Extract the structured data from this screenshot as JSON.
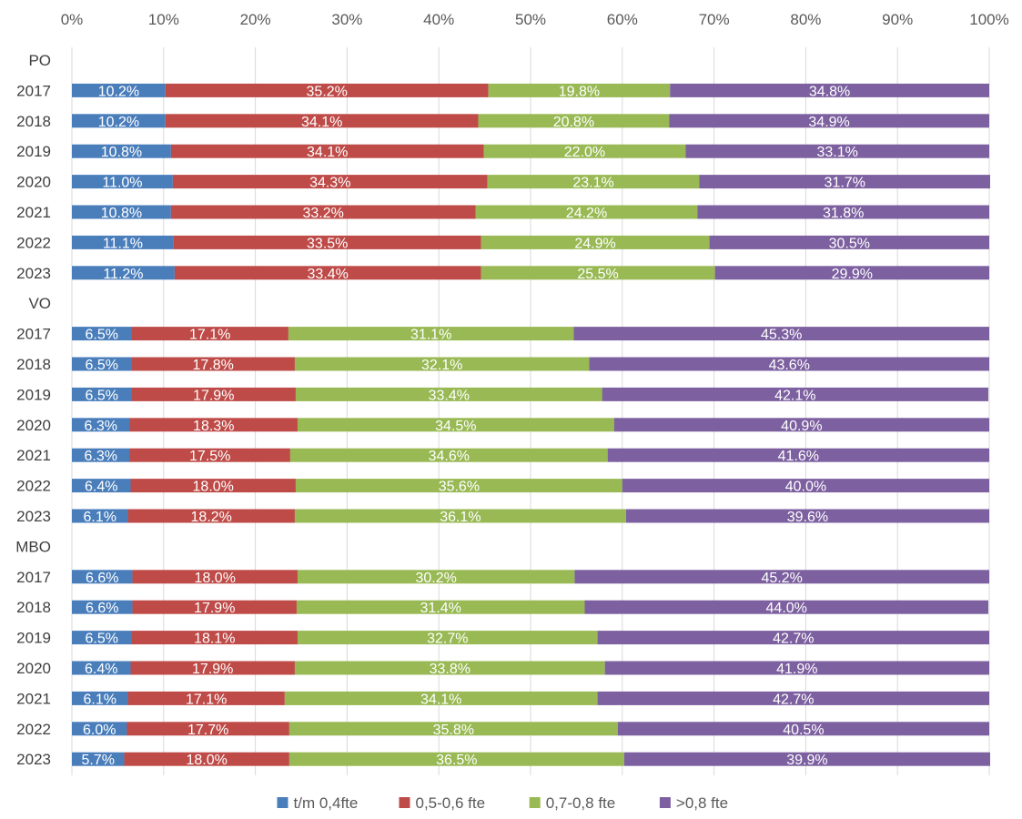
{
  "chart_data": {
    "type": "bar",
    "orientation": "horizontal",
    "stacked": "percent",
    "title": "",
    "xlabel": "",
    "ylabel": "",
    "xlim": [
      0,
      100
    ],
    "x_ticks": [
      "0%",
      "10%",
      "20%",
      "30%",
      "40%",
      "50%",
      "60%",
      "70%",
      "80%",
      "90%",
      "100%"
    ],
    "x_axis_position": "top",
    "grid": true,
    "legend_position": "bottom",
    "colors": [
      "#4a7ebb",
      "#be4b48",
      "#98b954",
      "#7d60a0"
    ],
    "categories": [
      "PO",
      "2017",
      "2018",
      "2019",
      "2020",
      "2021",
      "2022",
      "2023",
      "VO",
      "2017",
      "2018",
      "2019",
      "2020",
      "2021",
      "2022",
      "2023",
      "MBO",
      "2017",
      "2018",
      "2019",
      "2020",
      "2021",
      "2022",
      "2023"
    ],
    "series": [
      {
        "name": "t/m 0,4fte",
        "values": [
          null,
          10.2,
          10.2,
          10.8,
          11.0,
          10.8,
          11.1,
          11.2,
          null,
          6.5,
          6.5,
          6.5,
          6.3,
          6.3,
          6.4,
          6.1,
          null,
          6.6,
          6.6,
          6.5,
          6.4,
          6.1,
          6.0,
          5.7
        ],
        "labels": [
          "",
          "10.2%",
          "10.2%",
          "10.8%",
          "11.0%",
          "10.8%",
          "11.1%",
          "11.2%",
          "",
          "6.5%",
          "6.5%",
          "6.5%",
          "6.3%",
          "6.3%",
          "6.4%",
          "6.1%",
          "",
          "6.6%",
          "6.6%",
          "6.5%",
          "6.4%",
          "6.1%",
          "6.0%",
          "5.7%"
        ]
      },
      {
        "name": "0,5-0,6 fte",
        "values": [
          null,
          35.2,
          34.1,
          34.1,
          34.3,
          33.2,
          33.5,
          33.4,
          null,
          17.1,
          17.8,
          17.9,
          18.3,
          17.5,
          18.0,
          18.2,
          null,
          18.0,
          17.9,
          18.1,
          17.9,
          17.1,
          17.7,
          18.0
        ],
        "labels": [
          "",
          "35.2%",
          "34.1%",
          "34.1%",
          "34.3%",
          "33.2%",
          "33.5%",
          "33.4%",
          "",
          "17.1%",
          "17.8%",
          "17.9%",
          "18.3%",
          "17.5%",
          "18.0%",
          "18.2%",
          "",
          "18.0%",
          "17.9%",
          "18.1%",
          "17.9%",
          "17.1%",
          "17.7%",
          "18.0%"
        ]
      },
      {
        "name": "0,7-0,8 fte",
        "values": [
          null,
          19.8,
          20.8,
          22.0,
          23.1,
          24.2,
          24.9,
          25.5,
          null,
          31.1,
          32.1,
          33.4,
          34.5,
          34.6,
          35.6,
          36.1,
          null,
          30.2,
          31.4,
          32.7,
          33.8,
          34.1,
          35.8,
          36.5
        ],
        "labels": [
          "",
          "19.8%",
          "20.8%",
          "22.0%",
          "23.1%",
          "24.2%",
          "24.9%",
          "25.5%",
          "",
          "31.1%",
          "32.1%",
          "33.4%",
          "34.5%",
          "34.6%",
          "35.6%",
          "36.1%",
          "",
          "30.2%",
          "31.4%",
          "32.7%",
          "33.8%",
          "34.1%",
          "35.8%",
          "36.5%"
        ]
      },
      {
        "name": ">0,8 fte",
        "values": [
          null,
          34.8,
          34.9,
          33.1,
          31.7,
          31.8,
          30.5,
          29.9,
          null,
          45.3,
          43.6,
          42.1,
          40.9,
          41.6,
          40.0,
          39.6,
          null,
          45.2,
          44.0,
          42.7,
          41.9,
          42.7,
          40.5,
          39.9
        ],
        "labels": [
          "",
          "34.8%",
          "34.9%",
          "33.1%",
          "31.7%",
          "31.8%",
          "30.5%",
          "29.9%",
          "",
          "45.3%",
          "43.6%",
          "42.1%",
          "40.9%",
          "41.6%",
          "40.0%",
          "39.6%",
          "",
          "45.2%",
          "44.0%",
          "42.7%",
          "41.9%",
          "42.7%",
          "40.5%",
          "39.9%"
        ]
      }
    ]
  }
}
